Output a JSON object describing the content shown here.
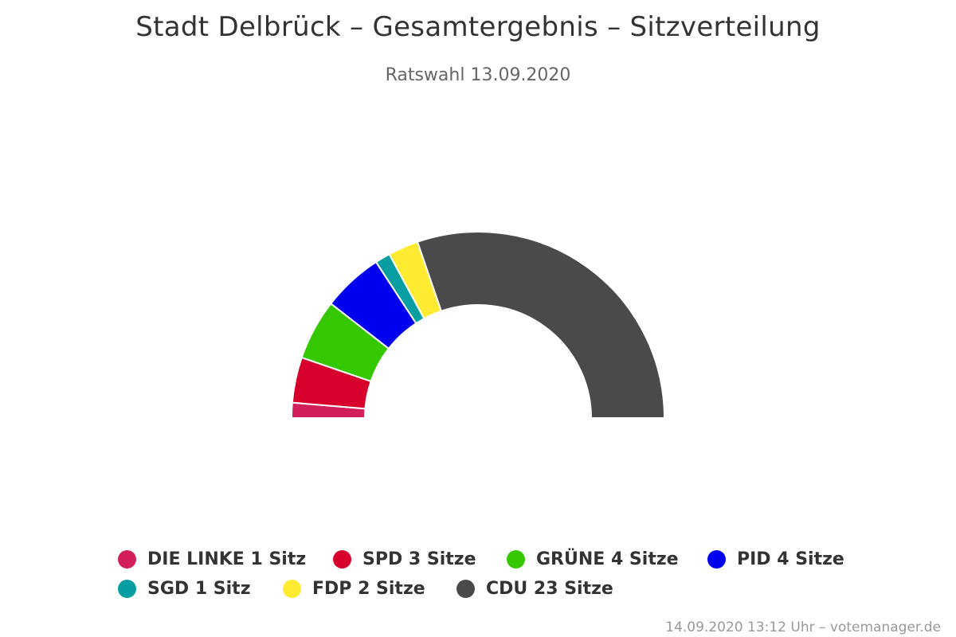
{
  "chart_data": {
    "type": "pie",
    "subtype": "semi-donut",
    "title": "Stadt Delbrück – Gesamtergebnis – Sitzverteilung",
    "subtitle": "Ratswahl 13.09.2020",
    "series": [
      {
        "name": "DIE LINKE",
        "value": 1,
        "label": "DIE LINKE 1 Sitz",
        "color": "#d21e5a"
      },
      {
        "name": "SPD",
        "value": 3,
        "label": "SPD 3 Sitze",
        "color": "#d7002d"
      },
      {
        "name": "GRÜNE",
        "value": 4,
        "label": "GRÜNE 4 Sitze",
        "color": "#35c800"
      },
      {
        "name": "PID",
        "value": 4,
        "label": "PID 4 Sitze",
        "color": "#0000ee"
      },
      {
        "name": "SGD",
        "value": 1,
        "label": "SGD 1 Sitz",
        "color": "#069ea1"
      },
      {
        "name": "FDP",
        "value": 2,
        "label": "FDP 2 Sitze",
        "color": "#ffeb32"
      },
      {
        "name": "CDU",
        "value": 23,
        "label": "CDU 23 Sitze",
        "color": "#4a4a4a"
      }
    ],
    "legend_position": "bottom"
  },
  "credits": "14.09.2020 13:12 Uhr – votemanager.de"
}
